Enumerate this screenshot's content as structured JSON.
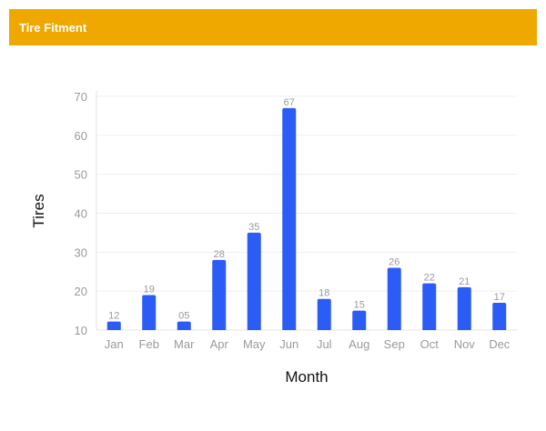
{
  "header": {
    "title": "Tire Fitment",
    "background": "#EEA800"
  },
  "chart_data": {
    "type": "bar",
    "categories": [
      "Jan",
      "Feb",
      "Mar",
      "Apr",
      "May",
      "Jun",
      "Jul",
      "Aug",
      "Sep",
      "Oct",
      "Nov",
      "Dec"
    ],
    "values": [
      12,
      19,
      5,
      28,
      35,
      67,
      18,
      15,
      26,
      22,
      21,
      17
    ],
    "value_labels": [
      "12",
      "19",
      "05",
      "28",
      "35",
      "67",
      "18",
      "15",
      "26",
      "22",
      "21",
      "17"
    ],
    "xlabel": "Month",
    "ylabel": "Tires",
    "ylim": [
      10,
      70
    ],
    "yticks": [
      10,
      20,
      30,
      40,
      50,
      60,
      70
    ],
    "grid": true,
    "bar_color": "#2B5CF5"
  }
}
